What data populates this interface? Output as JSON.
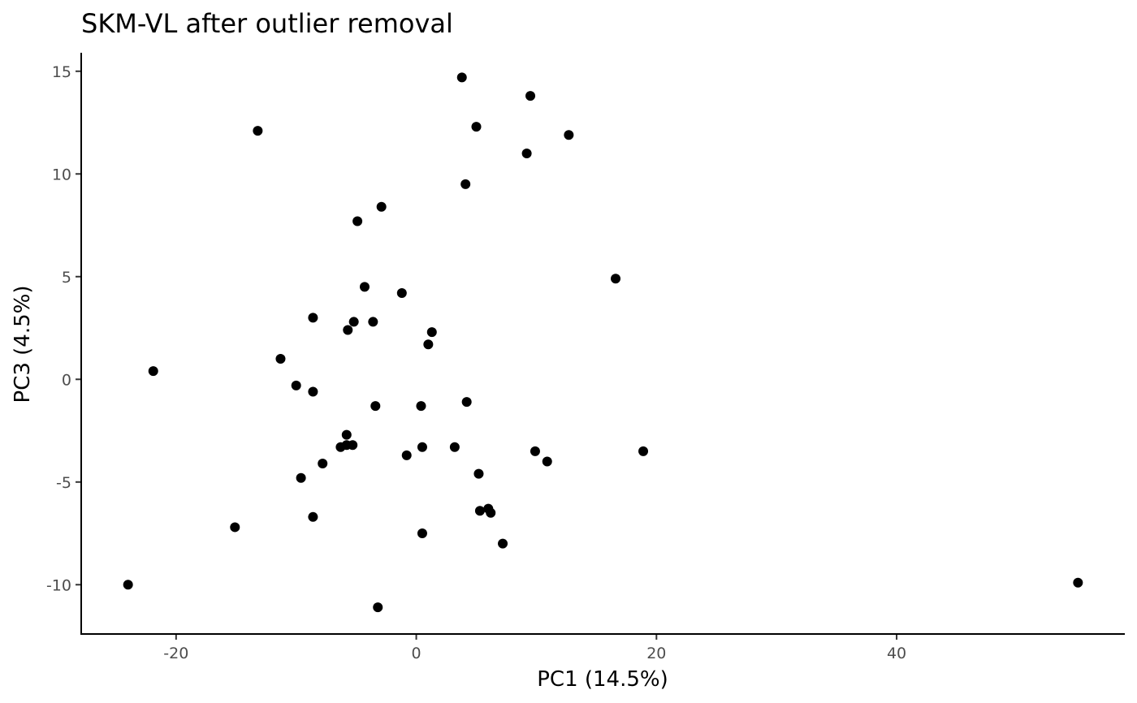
{
  "chart_data": {
    "type": "scatter",
    "title": "SKM-VL after outlier removal",
    "xlabel": "PC1 (14.5%)",
    "ylabel": "PC3 (4.5%)",
    "xlim": [
      -27.9,
      59.0
    ],
    "ylim": [
      -12.4,
      15.9
    ],
    "xticks": [
      -20,
      0,
      20,
      40
    ],
    "xtick_labels": [
      "-20",
      "0",
      "20",
      "40"
    ],
    "yticks": [
      -10,
      -5,
      0,
      5,
      10,
      15
    ],
    "ytick_labels": [
      "-10",
      "-5",
      "0",
      "5",
      "10",
      "15"
    ],
    "grid": false,
    "legend": "none",
    "point_color": "#000000",
    "points": [
      {
        "x": 3.8,
        "y": 14.7
      },
      {
        "x": 9.5,
        "y": 13.8
      },
      {
        "x": 5.0,
        "y": 12.3
      },
      {
        "x": 12.7,
        "y": 11.9
      },
      {
        "x": -13.2,
        "y": 12.1
      },
      {
        "x": 9.2,
        "y": 11.0
      },
      {
        "x": 4.1,
        "y": 9.5
      },
      {
        "x": -2.9,
        "y": 8.4
      },
      {
        "x": -4.9,
        "y": 7.7
      },
      {
        "x": 16.6,
        "y": 4.9
      },
      {
        "x": -4.3,
        "y": 4.5
      },
      {
        "x": -1.2,
        "y": 4.2
      },
      {
        "x": -8.6,
        "y": 3.0
      },
      {
        "x": -5.2,
        "y": 2.8
      },
      {
        "x": -3.6,
        "y": 2.8
      },
      {
        "x": -5.7,
        "y": 2.4
      },
      {
        "x": 1.3,
        "y": 2.3
      },
      {
        "x": 1.0,
        "y": 1.7
      },
      {
        "x": -11.3,
        "y": 1.0
      },
      {
        "x": -21.9,
        "y": 0.4
      },
      {
        "x": -10.0,
        "y": -0.3
      },
      {
        "x": -8.6,
        "y": -0.6
      },
      {
        "x": 4.2,
        "y": -1.1
      },
      {
        "x": -3.4,
        "y": -1.3
      },
      {
        "x": 0.4,
        "y": -1.3
      },
      {
        "x": -5.8,
        "y": -2.7
      },
      {
        "x": -6.3,
        "y": -3.3
      },
      {
        "x": -5.8,
        "y": -3.2
      },
      {
        "x": -5.3,
        "y": -3.2
      },
      {
        "x": 0.5,
        "y": -3.3
      },
      {
        "x": 3.2,
        "y": -3.3
      },
      {
        "x": 9.9,
        "y": -3.5
      },
      {
        "x": 18.9,
        "y": -3.5
      },
      {
        "x": -0.8,
        "y": -3.7
      },
      {
        "x": 10.9,
        "y": -4.0
      },
      {
        "x": -7.8,
        "y": -4.1
      },
      {
        "x": 5.2,
        "y": -4.6
      },
      {
        "x": -9.6,
        "y": -4.8
      },
      {
        "x": 5.3,
        "y": -6.4
      },
      {
        "x": 6.0,
        "y": -6.3
      },
      {
        "x": 6.2,
        "y": -6.5
      },
      {
        "x": -8.6,
        "y": -6.7
      },
      {
        "x": -15.1,
        "y": -7.2
      },
      {
        "x": 0.5,
        "y": -7.5
      },
      {
        "x": 7.2,
        "y": -8.0
      },
      {
        "x": -24.0,
        "y": -10.0
      },
      {
        "x": 55.1,
        "y": -9.9
      },
      {
        "x": -3.2,
        "y": -11.1
      }
    ]
  }
}
